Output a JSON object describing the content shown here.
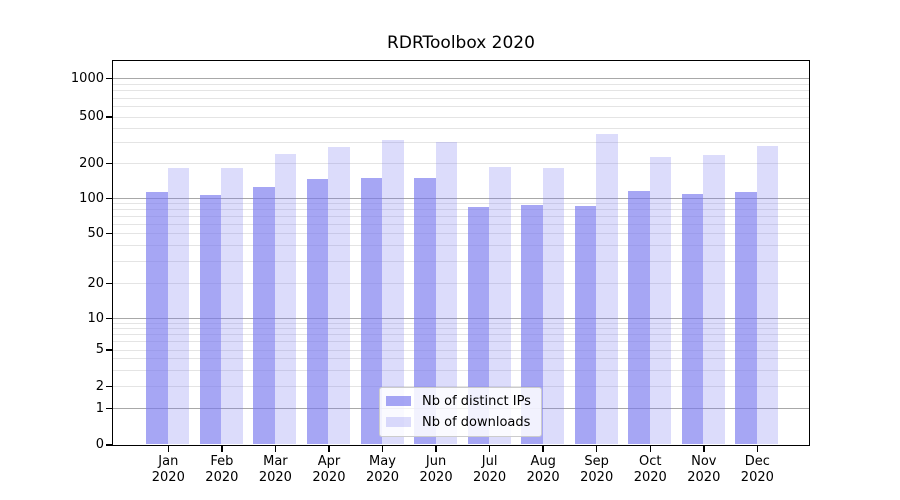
{
  "title": "RDRToolbox 2020",
  "chart_data": {
    "type": "bar",
    "title": "RDRToolbox 2020",
    "categories": [
      "Jan",
      "Feb",
      "Mar",
      "Apr",
      "May",
      "Jun",
      "Jul",
      "Aug",
      "Sep",
      "Oct",
      "Nov",
      "Dec"
    ],
    "category_year": "2020",
    "series": [
      {
        "name": "Nb of distinct IPs",
        "values": [
          112,
          107,
          125,
          145,
          149,
          150,
          84,
          87,
          85,
          114,
          109,
          113
        ]
      },
      {
        "name": "Nb of downloads",
        "values": [
          182,
          180,
          241,
          274,
          313,
          303,
          184,
          181,
          352,
          225,
          233,
          281
        ]
      }
    ],
    "xlabel": "",
    "ylabel": "",
    "yscale": "symlog",
    "yticks": [
      0,
      1,
      2,
      5,
      10,
      20,
      50,
      100,
      200,
      500,
      1000
    ],
    "ylim": [
      0,
      1400
    ],
    "grid": "both (major darker at powers of 10, minor light)",
    "legend_position": "lower center inside plot"
  },
  "colors": {
    "bar_base": "#7878ee",
    "bar_ips_alpha": 0.66,
    "bar_downloads_alpha": 0.26,
    "grid_major": "#a8a8a8",
    "grid_minor": "#e4e4e4",
    "spine": "#000000",
    "text": "#000000",
    "legend_border": "#cccccc"
  }
}
